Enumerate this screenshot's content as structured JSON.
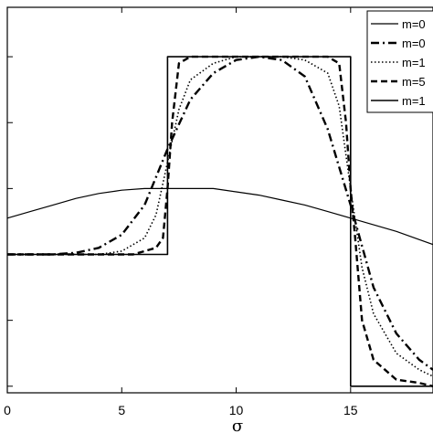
{
  "chart_data": {
    "type": "line",
    "title": "",
    "xlabel": "σ",
    "ylabel": "",
    "xlim": [
      0,
      18.6
    ],
    "ylim": [
      -0.02,
      1.15
    ],
    "grid": false,
    "legend_position": "top-right",
    "x_ticks": [
      0,
      5,
      10,
      15
    ],
    "x_tick_labels": [
      "0",
      "5",
      "10",
      "15"
    ],
    "series": [
      {
        "name": "m=0",
        "style": "solid-thin",
        "x": [
          0,
          1,
          2,
          3,
          4,
          5,
          6,
          7,
          8,
          9,
          10,
          11,
          12,
          13,
          14,
          15,
          16,
          17,
          18,
          18.6
        ],
        "y": [
          0.51,
          0.53,
          0.55,
          0.57,
          0.585,
          0.595,
          0.6,
          0.6,
          0.6,
          0.6,
          0.59,
          0.58,
          0.565,
          0.55,
          0.53,
          0.51,
          0.49,
          0.47,
          0.445,
          0.43
        ]
      },
      {
        "name": "m=0",
        "style": "dash-dot",
        "x": [
          0,
          1,
          2,
          3,
          4,
          5,
          6,
          7,
          8,
          9,
          10,
          11,
          12,
          13,
          14,
          15,
          16,
          17,
          18,
          18.6
        ],
        "y": [
          0.4,
          0.4,
          0.4,
          0.405,
          0.42,
          0.46,
          0.55,
          0.72,
          0.87,
          0.95,
          0.99,
          1.0,
          0.99,
          0.94,
          0.78,
          0.55,
          0.3,
          0.16,
          0.08,
          0.05
        ]
      },
      {
        "name": "m=1",
        "style": "dotted",
        "x": [
          0,
          2,
          4,
          5,
          6,
          6.5,
          7,
          7.5,
          8,
          9,
          10,
          11,
          12,
          13,
          14,
          14.5,
          15,
          15.5,
          16,
          17,
          18,
          18.6
        ],
        "y": [
          0.4,
          0.4,
          0.4,
          0.41,
          0.45,
          0.52,
          0.68,
          0.84,
          0.93,
          0.98,
          1.0,
          1.0,
          1.0,
          0.99,
          0.95,
          0.85,
          0.6,
          0.36,
          0.22,
          0.1,
          0.05,
          0.03
        ]
      },
      {
        "name": "m=5",
        "style": "dashed",
        "x": [
          0,
          4,
          5,
          5.5,
          6,
          6.5,
          6.8,
          7,
          7.2,
          7.5,
          8,
          9,
          10,
          11,
          12,
          13,
          14,
          14.5,
          14.8,
          15,
          15.2,
          15.5,
          16,
          17,
          18,
          18.6
        ],
        "y": [
          0.4,
          0.4,
          0.4,
          0.4,
          0.41,
          0.42,
          0.45,
          0.6,
          0.8,
          0.98,
          1.0,
          1.0,
          1.0,
          1.0,
          1.0,
          1.0,
          1.0,
          0.98,
          0.8,
          0.6,
          0.45,
          0.2,
          0.08,
          0.02,
          0.01,
          0.0
        ]
      },
      {
        "name": "m=1",
        "style": "solid",
        "x": [
          0,
          7,
          7,
          15,
          15,
          18.6
        ],
        "y": [
          0.4,
          0.4,
          1.0,
          1.0,
          0.0,
          0.0
        ]
      }
    ]
  }
}
